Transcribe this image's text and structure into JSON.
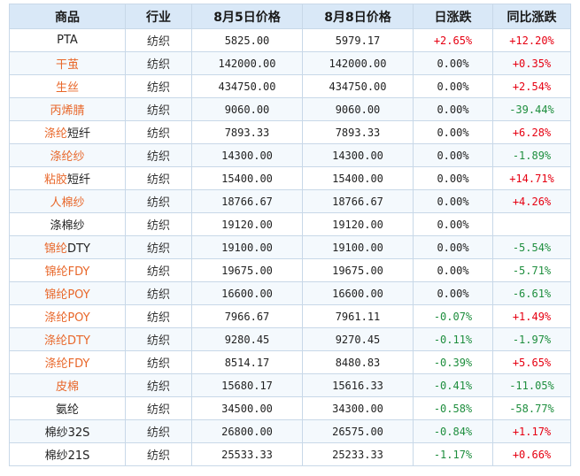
{
  "table": {
    "headers": [
      "商品",
      "行业",
      "8月5日价格",
      "8月8日价格",
      "日涨跌",
      "同比涨跌"
    ],
    "rows": [
      {
        "name_link": "",
        "name_plain": "PTA",
        "industry": "纺织",
        "price_aug5": "5825.00",
        "price_aug8": "5979.17",
        "daily_change": "+2.65%",
        "daily_dir": "up",
        "yoy_change": "+12.20%",
        "yoy_dir": "up"
      },
      {
        "name_link": "干茧",
        "name_plain": "",
        "industry": "纺织",
        "price_aug5": "142000.00",
        "price_aug8": "142000.00",
        "daily_change": "0.00%",
        "daily_dir": "flat",
        "yoy_change": "+0.35%",
        "yoy_dir": "up"
      },
      {
        "name_link": "生丝",
        "name_plain": "",
        "industry": "纺织",
        "price_aug5": "434750.00",
        "price_aug8": "434750.00",
        "daily_change": "0.00%",
        "daily_dir": "flat",
        "yoy_change": "+2.54%",
        "yoy_dir": "up"
      },
      {
        "name_link": "丙烯腈",
        "name_plain": "",
        "industry": "纺织",
        "price_aug5": "9060.00",
        "price_aug8": "9060.00",
        "daily_change": "0.00%",
        "daily_dir": "flat",
        "yoy_change": "-39.44%",
        "yoy_dir": "down"
      },
      {
        "name_link": "涤纶",
        "name_plain": "短纤",
        "industry": "纺织",
        "price_aug5": "7893.33",
        "price_aug8": "7893.33",
        "daily_change": "0.00%",
        "daily_dir": "flat",
        "yoy_change": "+6.28%",
        "yoy_dir": "up"
      },
      {
        "name_link": "涤纶纱",
        "name_plain": "",
        "industry": "纺织",
        "price_aug5": "14300.00",
        "price_aug8": "14300.00",
        "daily_change": "0.00%",
        "daily_dir": "flat",
        "yoy_change": "-1.89%",
        "yoy_dir": "down"
      },
      {
        "name_link": "粘胶",
        "name_plain": "短纤",
        "industry": "纺织",
        "price_aug5": "15400.00",
        "price_aug8": "15400.00",
        "daily_change": "0.00%",
        "daily_dir": "flat",
        "yoy_change": "+14.71%",
        "yoy_dir": "up"
      },
      {
        "name_link": "人棉纱",
        "name_plain": "",
        "industry": "纺织",
        "price_aug5": "18766.67",
        "price_aug8": "18766.67",
        "daily_change": "0.00%",
        "daily_dir": "flat",
        "yoy_change": "+4.26%",
        "yoy_dir": "up"
      },
      {
        "name_link": "",
        "name_plain": "涤棉纱",
        "industry": "纺织",
        "price_aug5": "19120.00",
        "price_aug8": "19120.00",
        "daily_change": "0.00%",
        "daily_dir": "flat",
        "yoy_change": "",
        "yoy_dir": "flat"
      },
      {
        "name_link": "锦纶",
        "name_plain": "DTY",
        "industry": "纺织",
        "price_aug5": "19100.00",
        "price_aug8": "19100.00",
        "daily_change": "0.00%",
        "daily_dir": "flat",
        "yoy_change": "-5.54%",
        "yoy_dir": "down"
      },
      {
        "name_link": "锦纶FDY",
        "name_plain": "",
        "industry": "纺织",
        "price_aug5": "19675.00",
        "price_aug8": "19675.00",
        "daily_change": "0.00%",
        "daily_dir": "flat",
        "yoy_change": "-5.71%",
        "yoy_dir": "down"
      },
      {
        "name_link": "锦纶POY",
        "name_plain": "",
        "industry": "纺织",
        "price_aug5": "16600.00",
        "price_aug8": "16600.00",
        "daily_change": "0.00%",
        "daily_dir": "flat",
        "yoy_change": "-6.61%",
        "yoy_dir": "down"
      },
      {
        "name_link": "涤纶POY",
        "name_plain": "",
        "industry": "纺织",
        "price_aug5": "7966.67",
        "price_aug8": "7961.11",
        "daily_change": "-0.07%",
        "daily_dir": "down",
        "yoy_change": "+1.49%",
        "yoy_dir": "up"
      },
      {
        "name_link": "涤纶DTY",
        "name_plain": "",
        "industry": "纺织",
        "price_aug5": "9280.45",
        "price_aug8": "9270.45",
        "daily_change": "-0.11%",
        "daily_dir": "down",
        "yoy_change": "-1.97%",
        "yoy_dir": "down"
      },
      {
        "name_link": "涤纶FDY",
        "name_plain": "",
        "industry": "纺织",
        "price_aug5": "8514.17",
        "price_aug8": "8480.83",
        "daily_change": "-0.39%",
        "daily_dir": "down",
        "yoy_change": "+5.65%",
        "yoy_dir": "up"
      },
      {
        "name_link": "皮棉",
        "name_plain": "",
        "industry": "纺织",
        "price_aug5": "15680.17",
        "price_aug8": "15616.33",
        "daily_change": "-0.41%",
        "daily_dir": "down",
        "yoy_change": "-11.05%",
        "yoy_dir": "down"
      },
      {
        "name_link": "",
        "name_plain": "氨纶",
        "industry": "纺织",
        "price_aug5": "34500.00",
        "price_aug8": "34300.00",
        "daily_change": "-0.58%",
        "daily_dir": "down",
        "yoy_change": "-58.77%",
        "yoy_dir": "down"
      },
      {
        "name_link": "",
        "name_plain": "棉纱32S",
        "industry": "纺织",
        "price_aug5": "26800.00",
        "price_aug8": "26575.00",
        "daily_change": "-0.84%",
        "daily_dir": "down",
        "yoy_change": "+1.17%",
        "yoy_dir": "up"
      },
      {
        "name_link": "",
        "name_plain": "棉纱21S",
        "industry": "纺织",
        "price_aug5": "25533.33",
        "price_aug8": "25233.33",
        "daily_change": "-1.17%",
        "daily_dir": "down",
        "yoy_change": "+0.66%",
        "yoy_dir": "up"
      }
    ]
  },
  "colors": {
    "header_bg": "#d9e8f7",
    "border": "#c8d8e8",
    "link_orange": "#e8672a",
    "up_red": "#e60012",
    "down_green": "#1e8e3e"
  }
}
